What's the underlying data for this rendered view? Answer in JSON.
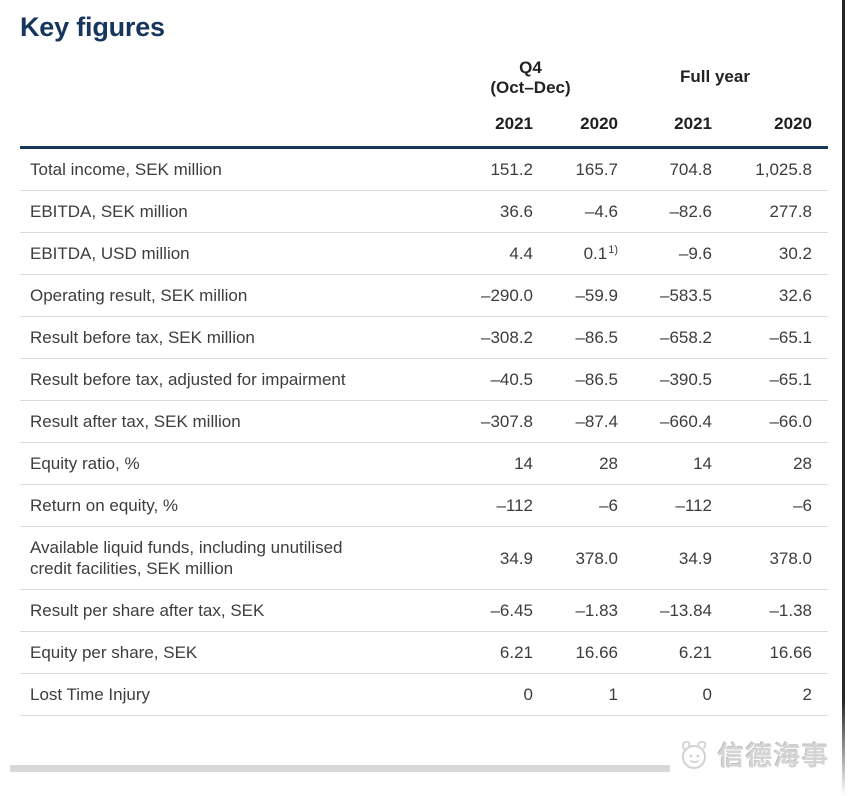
{
  "page": {
    "title": "Key figures"
  },
  "table": {
    "group_q4_line1": "Q4",
    "group_q4_line2": "(Oct–Dec)",
    "group_full_year": "Full year",
    "years": [
      "2021",
      "2020",
      "2021",
      "2020"
    ],
    "rows": [
      {
        "label": "Total income, SEK million",
        "values": [
          "151.2",
          "165.7",
          "704.8",
          "1,025.8"
        ]
      },
      {
        "label": "EBITDA, SEK million",
        "values": [
          "36.6",
          "–4.6",
          "–82.6",
          "277.8"
        ]
      },
      {
        "label": "EBITDA, USD million",
        "values": [
          "4.4",
          "0.1",
          "–9.6",
          "30.2"
        ],
        "sup": {
          "col": 1,
          "text": "1)"
        }
      },
      {
        "label": "Operating result, SEK million",
        "values": [
          "–290.0",
          "–59.9",
          "–583.5",
          "32.6"
        ]
      },
      {
        "label": "Result before tax, SEK million",
        "values": [
          "–308.2",
          "–86.5",
          "–658.2",
          "–65.1"
        ]
      },
      {
        "label": "Result before tax, adjusted for impairment",
        "values": [
          "–40.5",
          "–86.5",
          "–390.5",
          "–65.1"
        ]
      },
      {
        "label": "Result after tax, SEK million",
        "values": [
          "–307.8",
          "–87.4",
          "–660.4",
          "–66.0"
        ]
      },
      {
        "label": "Equity ratio, %",
        "values": [
          "14",
          "28",
          "14",
          "28"
        ]
      },
      {
        "label": "Return on equity, %",
        "values": [
          "–112",
          "–6",
          "–112",
          "–6"
        ]
      },
      {
        "label": "Available liquid funds, including unutilised\ncredit facilities, SEK million",
        "values": [
          "34.9",
          "378.0",
          "34.9",
          "378.0"
        ]
      },
      {
        "label": "Result per share after tax, SEK",
        "values": [
          "–6.45",
          "–1.83",
          "–13.84",
          "–1.38"
        ]
      },
      {
        "label": "Equity per share, SEK",
        "values": [
          "6.21",
          "16.66",
          "6.21",
          "16.66"
        ]
      },
      {
        "label": "Lost Time Injury",
        "values": [
          "0",
          "1",
          "0",
          "2"
        ]
      }
    ]
  },
  "watermark": {
    "text": "信德海事"
  },
  "colors": {
    "accent_navy": "#16365e",
    "divider": "#dadada",
    "footer_rule": "#d8d8d8",
    "watermark_gray": "#d4d4d4"
  }
}
